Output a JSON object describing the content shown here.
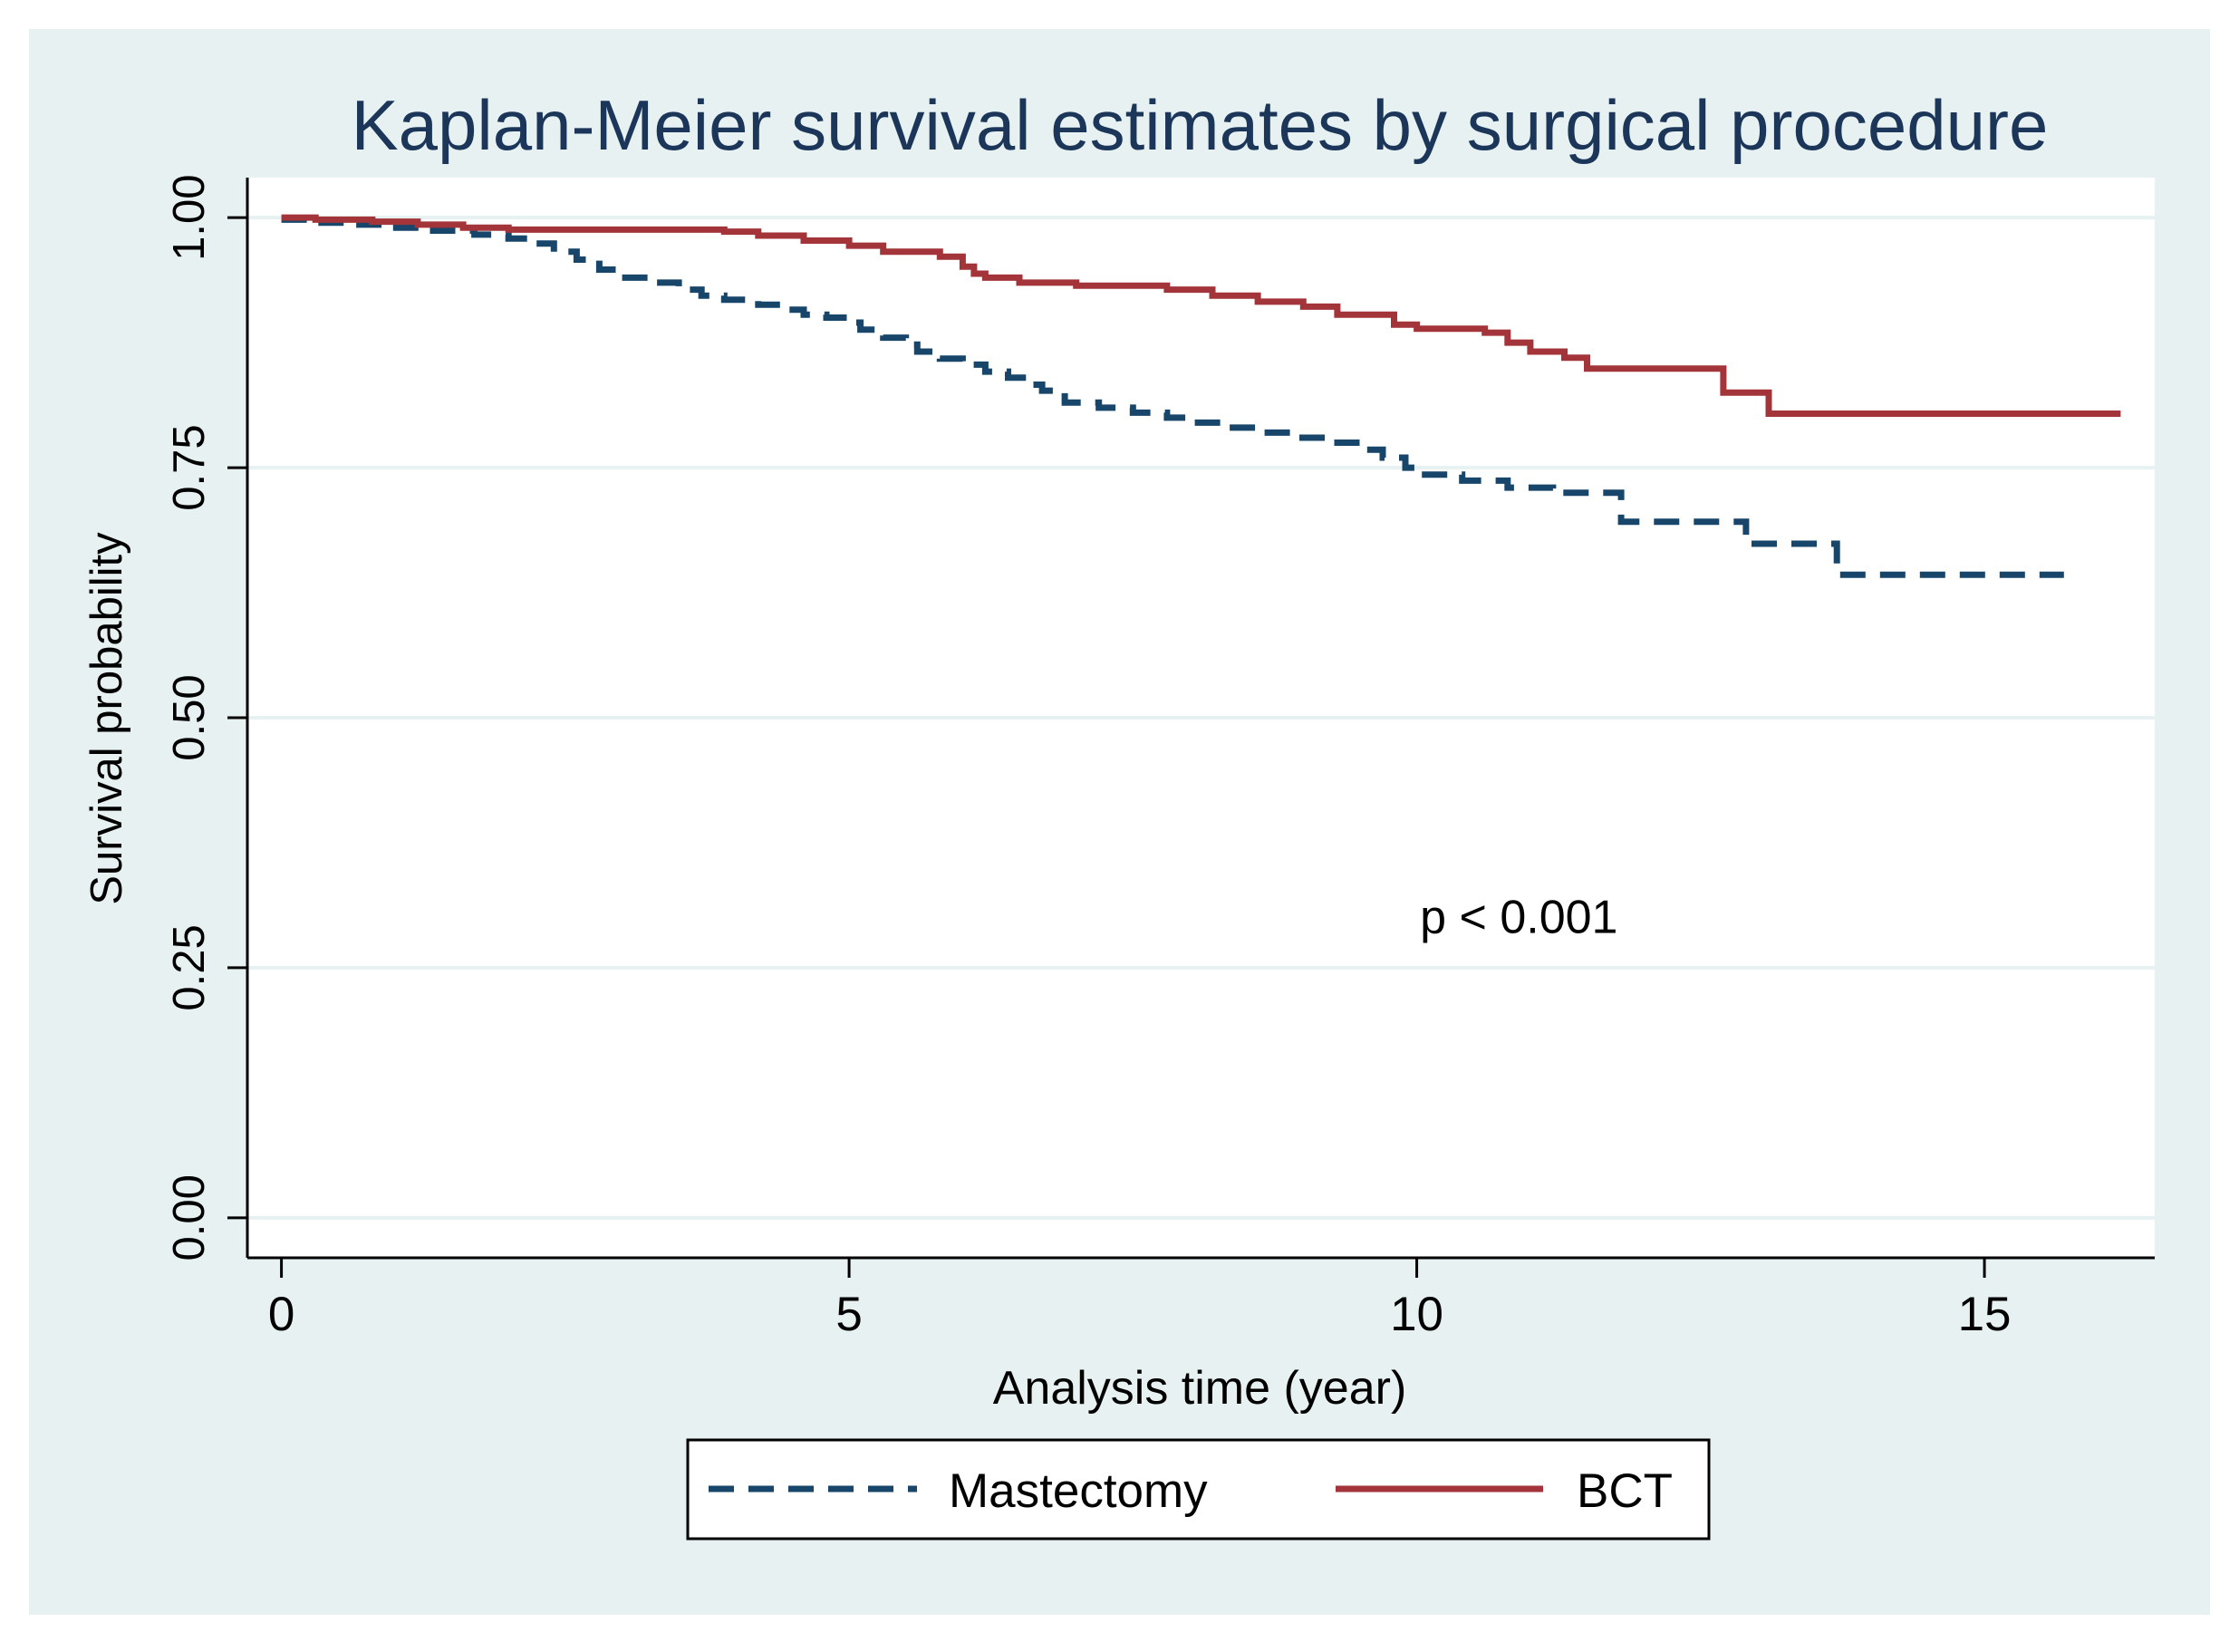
{
  "colors": {
    "page_background": "#ffffff",
    "outer_background": "#e7f1f1",
    "plot_background": "#ffffff",
    "gridline": "#e7f1f1",
    "axis": "#000000",
    "title": "#1b3659",
    "mastectomy": "#17466a",
    "bct": "#a2343a"
  },
  "chart_data": {
    "type": "line",
    "subtype": "kaplan-meier-step",
    "title": "Kaplan-Meier survival estimates by surgical procedure",
    "xlabel": "Analysis time (year)",
    "ylabel": "Survival probability",
    "xlim": [
      -0.3,
      16.5
    ],
    "ylim": [
      -0.04,
      1.04
    ],
    "x_ticks": [
      0,
      5,
      10,
      15
    ],
    "x_tick_labels": [
      "0",
      "5",
      "10",
      "15"
    ],
    "y_ticks": [
      0,
      0.25,
      0.5,
      0.75,
      1.0
    ],
    "y_tick_labels": [
      "0.00",
      "0.25",
      "0.50",
      "0.75",
      "1.00"
    ],
    "grid": "horizontal",
    "annotation": "p < 0.001",
    "annotation_position": {
      "x": 10.9,
      "y": 0.285
    },
    "legend": {
      "placement": "bottom",
      "entries": [
        "Mastectomy",
        "BCT"
      ]
    },
    "series": [
      {
        "name": "Mastectomy",
        "style": "dashed",
        "points": [
          [
            0,
            0.998
          ],
          [
            0.3,
            0.995
          ],
          [
            0.6,
            0.993
          ],
          [
            0.9,
            0.99
          ],
          [
            1.3,
            0.987
          ],
          [
            1.7,
            0.983
          ],
          [
            2.0,
            0.979
          ],
          [
            2.2,
            0.974
          ],
          [
            2.4,
            0.966
          ],
          [
            2.6,
            0.958
          ],
          [
            2.8,
            0.948
          ],
          [
            3.0,
            0.94
          ],
          [
            3.3,
            0.935
          ],
          [
            3.5,
            0.928
          ],
          [
            3.7,
            0.922
          ],
          [
            3.9,
            0.918
          ],
          [
            4.2,
            0.913
          ],
          [
            4.4,
            0.908
          ],
          [
            4.6,
            0.903
          ],
          [
            4.8,
            0.9
          ],
          [
            5.0,
            0.895
          ],
          [
            5.1,
            0.888
          ],
          [
            5.3,
            0.88
          ],
          [
            5.5,
            0.873
          ],
          [
            5.6,
            0.866
          ],
          [
            5.8,
            0.859
          ],
          [
            6.0,
            0.853
          ],
          [
            6.2,
            0.846
          ],
          [
            6.4,
            0.84
          ],
          [
            6.6,
            0.833
          ],
          [
            6.7,
            0.827
          ],
          [
            6.9,
            0.815
          ],
          [
            7.2,
            0.81
          ],
          [
            7.5,
            0.805
          ],
          [
            7.8,
            0.8
          ],
          [
            8.0,
            0.795
          ],
          [
            8.3,
            0.79
          ],
          [
            8.6,
            0.785
          ],
          [
            8.9,
            0.78
          ],
          [
            9.2,
            0.775
          ],
          [
            9.5,
            0.768
          ],
          [
            9.7,
            0.76
          ],
          [
            9.9,
            0.75
          ],
          [
            10.0,
            0.743
          ],
          [
            10.4,
            0.737
          ],
          [
            10.8,
            0.73
          ],
          [
            11.2,
            0.725
          ],
          [
            11.8,
            0.72
          ],
          [
            11.8,
            0.696
          ],
          [
            12.9,
            0.696
          ],
          [
            12.9,
            0.674
          ],
          [
            13.7,
            0.674
          ],
          [
            13.7,
            0.643
          ],
          [
            15.7,
            0.643
          ]
        ]
      },
      {
        "name": "BCT",
        "style": "solid",
        "points": [
          [
            0,
            1.0
          ],
          [
            0.3,
            0.998
          ],
          [
            0.8,
            0.996
          ],
          [
            1.2,
            0.993
          ],
          [
            1.6,
            0.99
          ],
          [
            2.0,
            0.988
          ],
          [
            3.9,
            0.986
          ],
          [
            4.2,
            0.982
          ],
          [
            4.6,
            0.977
          ],
          [
            5.0,
            0.972
          ],
          [
            5.3,
            0.966
          ],
          [
            5.8,
            0.961
          ],
          [
            6.0,
            0.951
          ],
          [
            6.1,
            0.944
          ],
          [
            6.2,
            0.94
          ],
          [
            6.5,
            0.935
          ],
          [
            7.0,
            0.932
          ],
          [
            7.8,
            0.928
          ],
          [
            8.2,
            0.922
          ],
          [
            8.6,
            0.916
          ],
          [
            9.0,
            0.911
          ],
          [
            9.3,
            0.903
          ],
          [
            9.8,
            0.893
          ],
          [
            10.0,
            0.889
          ],
          [
            10.6,
            0.885
          ],
          [
            10.8,
            0.875
          ],
          [
            11.0,
            0.866
          ],
          [
            11.3,
            0.86
          ],
          [
            11.5,
            0.849
          ],
          [
            12.7,
            0.849
          ],
          [
            12.7,
            0.825
          ],
          [
            13.1,
            0.825
          ],
          [
            13.1,
            0.804
          ],
          [
            16.2,
            0.804
          ]
        ]
      }
    ]
  }
}
